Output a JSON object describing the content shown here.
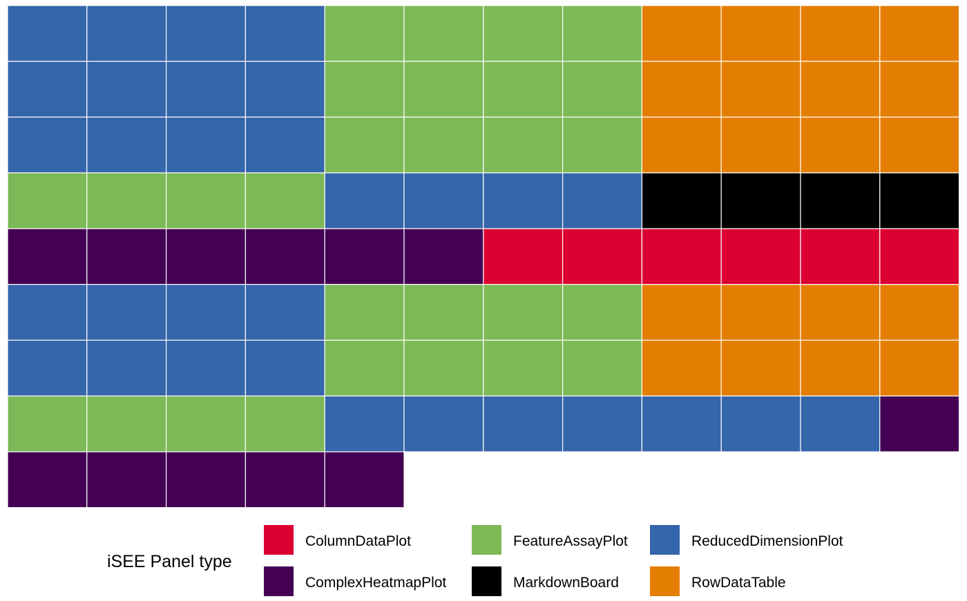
{
  "chart_data": {
    "type": "heatmap",
    "subtype": "waffle",
    "grid": {
      "columns": 12,
      "rows": 9,
      "fill_order": "row-major"
    },
    "legend": {
      "title": "iSEE Panel type",
      "position": "bottom",
      "entries": [
        {
          "name": "ColumnDataPlot",
          "color": "#DC0032"
        },
        {
          "name": "ComplexHeatmapPlot",
          "color": "#440154"
        },
        {
          "name": "FeatureAssayPlot",
          "color": "#7DB956"
        },
        {
          "name": "MarkdownBoard",
          "color": "#000000"
        },
        {
          "name": "ReducedDimensionPlot",
          "color": "#3565AA"
        },
        {
          "name": "RowDataTable",
          "color": "#E47E02"
        }
      ]
    },
    "series": [
      {
        "name": "ReducedDimensionPlot",
        "count": 4
      },
      {
        "name": "FeatureAssayPlot",
        "count": 4
      },
      {
        "name": "RowDataTable",
        "count": 4
      },
      {
        "name": "ReducedDimensionPlot",
        "count": 4
      },
      {
        "name": "FeatureAssayPlot",
        "count": 4
      },
      {
        "name": "RowDataTable",
        "count": 4
      },
      {
        "name": "ReducedDimensionPlot",
        "count": 4
      },
      {
        "name": "FeatureAssayPlot",
        "count": 4
      },
      {
        "name": "RowDataTable",
        "count": 4
      },
      {
        "name": "FeatureAssayPlot",
        "count": 4
      },
      {
        "name": "ReducedDimensionPlot",
        "count": 4
      },
      {
        "name": "MarkdownBoard",
        "count": 4
      },
      {
        "name": "ComplexHeatmapPlot",
        "count": 6
      },
      {
        "name": "ColumnDataPlot",
        "count": 6
      },
      {
        "name": "ReducedDimensionPlot",
        "count": 4
      },
      {
        "name": "FeatureAssayPlot",
        "count": 4
      },
      {
        "name": "RowDataTable",
        "count": 4
      },
      {
        "name": "ReducedDimensionPlot",
        "count": 4
      },
      {
        "name": "FeatureAssayPlot",
        "count": 4
      },
      {
        "name": "RowDataTable",
        "count": 4
      },
      {
        "name": "FeatureAssayPlot",
        "count": 4
      },
      {
        "name": "ReducedDimensionPlot",
        "count": 7
      },
      {
        "name": "ComplexHeatmapPlot",
        "count": 6
      }
    ],
    "grid_lines": false,
    "cell_border_color": "#FFFFFF"
  }
}
